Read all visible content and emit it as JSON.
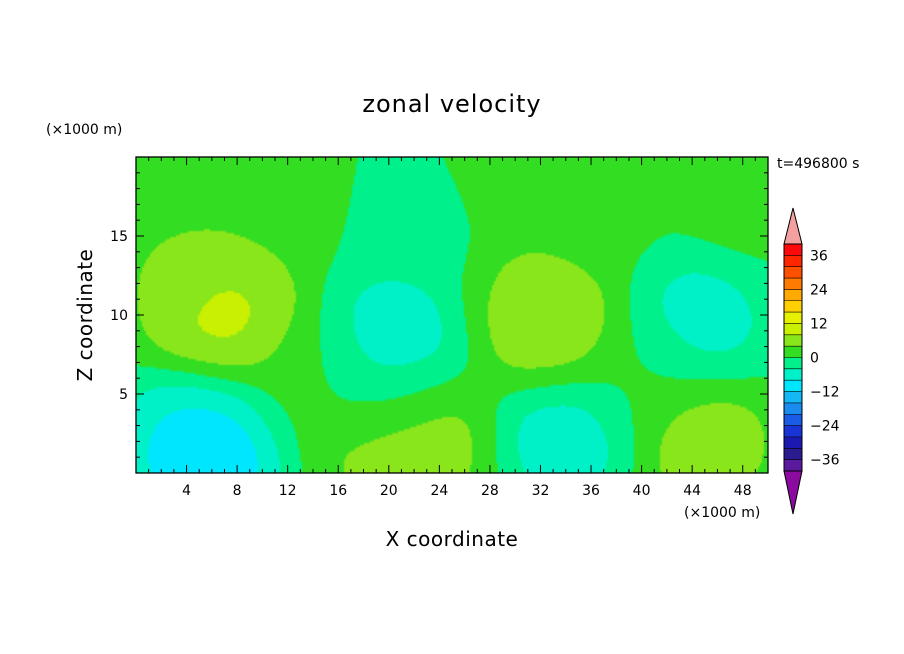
{
  "chart_data": {
    "type": "heatmap",
    "title": "zonal velocity",
    "xlabel": "X coordinate",
    "ylabel": "Z coordinate",
    "x_unit": "(×1000 m)",
    "y_unit": "(×1000 m)",
    "time_label": "t=496800 s",
    "xlim": [
      0,
      50
    ],
    "ylim": [
      0,
      20
    ],
    "xticks": [
      4,
      8,
      12,
      16,
      20,
      24,
      28,
      32,
      36,
      40,
      44,
      48
    ],
    "yticks": [
      5,
      10,
      15
    ],
    "colorbar": {
      "levels": [
        -40,
        -36,
        -32,
        -28,
        -24,
        -20,
        -16,
        -12,
        -8,
        -4,
        0,
        4,
        8,
        12,
        16,
        20,
        24,
        28,
        32,
        36,
        40
      ],
      "colors": [
        "#5b1a9e",
        "#2a1c8f",
        "#1a1ab0",
        "#1a33d6",
        "#1a5ce6",
        "#1a8cf0",
        "#14b8f5",
        "#00e6ff",
        "#00f0c8",
        "#00f08c",
        "#33dd22",
        "#88e61a",
        "#c8f000",
        "#e6f000",
        "#ffd000",
        "#ffaa00",
        "#ff7a00",
        "#ff5000",
        "#ff2600",
        "#ff0a0a"
      ],
      "tick_labels": [
        "-36",
        "-24",
        "-12",
        "0",
        "12",
        "24",
        "36"
      ],
      "tick_values": [
        -36,
        -24,
        -12,
        0,
        12,
        24,
        36
      ],
      "under_color": "#8b0aa0",
      "over_color": "#f5a0a0"
    },
    "field_features": [
      {
        "x": 7.5,
        "z": 11.0,
        "value": 9
      },
      {
        "x": 6.5,
        "z": 9.5,
        "value": 12
      },
      {
        "x": 2.5,
        "z": 13.0,
        "value": 5
      },
      {
        "x": 20.5,
        "z": 9.0,
        "value": -8
      },
      {
        "x": 19.5,
        "z": 5.0,
        "value": -8
      },
      {
        "x": 19.5,
        "z": 2.5,
        "value": 10
      },
      {
        "x": 23.0,
        "z": 2.0,
        "value": 8
      },
      {
        "x": 31.5,
        "z": 11.5,
        "value": 6
      },
      {
        "x": 33.0,
        "z": 9.0,
        "value": 10
      },
      {
        "x": 34.0,
        "z": 2.5,
        "value": -9
      },
      {
        "x": 44.5,
        "z": 9.5,
        "value": -8
      },
      {
        "x": 45.0,
        "z": 2.0,
        "value": 9
      },
      {
        "x": 5.5,
        "z": 1.0,
        "value": -16
      },
      {
        "x": 5.0,
        "z": 3.0,
        "value": -9
      },
      {
        "x": 4.0,
        "z": 18.0,
        "value": 4
      },
      {
        "x": 11.5,
        "z": 17.0,
        "value": 3
      },
      {
        "x": 30.0,
        "z": 18.5,
        "value": 3
      },
      {
        "x": 36.0,
        "z": 17.0,
        "value": 2
      },
      {
        "x": 48.0,
        "z": 18.0,
        "value": 3
      },
      {
        "x": 22.0,
        "z": 15.5,
        "value": -3
      },
      {
        "x": 13.5,
        "z": 6.0,
        "value": 2
      },
      {
        "x": 40.0,
        "z": 6.0,
        "value": 1
      }
    ]
  }
}
